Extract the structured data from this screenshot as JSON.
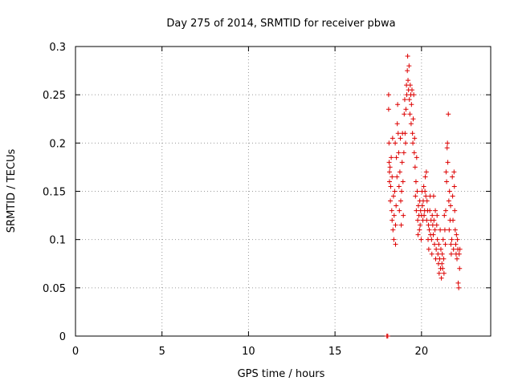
{
  "chart_data": {
    "type": "scatter",
    "title": "Day 275 of 2014, SRMTID for receiver pbwa",
    "xlabel": "GPS time / hours",
    "ylabel": "SRMTID / TECUs",
    "xlim": [
      0,
      24
    ],
    "ylim": [
      0,
      0.3
    ],
    "xticks": [
      0,
      5,
      10,
      15,
      20
    ],
    "yticks": [
      0,
      0.05,
      0.1,
      0.15,
      0.2,
      0.25,
      0.3
    ],
    "xtick_labels": [
      "0",
      "5",
      "10",
      "15",
      "20"
    ],
    "ytick_labels": [
      "0",
      "0.05",
      "0.1",
      "0.15",
      "0.2",
      "0.25",
      "0.3"
    ],
    "grid": true,
    "marker": "+",
    "color": "#dd0000",
    "series": [
      {
        "name": "pbwa",
        "points": [
          [
            18.0,
            0.0
          ],
          [
            18.05,
            0.0
          ],
          [
            18.1,
            0.25
          ],
          [
            18.1,
            0.235
          ],
          [
            18.12,
            0.2
          ],
          [
            18.13,
            0.18
          ],
          [
            18.15,
            0.17
          ],
          [
            18.15,
            0.16
          ],
          [
            18.18,
            0.175
          ],
          [
            18.2,
            0.14
          ],
          [
            18.22,
            0.155
          ],
          [
            18.25,
            0.185
          ],
          [
            18.28,
            0.13
          ],
          [
            18.3,
            0.12
          ],
          [
            18.3,
            0.165
          ],
          [
            18.33,
            0.205
          ],
          [
            18.35,
            0.11
          ],
          [
            18.38,
            0.145
          ],
          [
            18.4,
            0.1
          ],
          [
            18.42,
            0.125
          ],
          [
            18.45,
            0.15
          ],
          [
            18.48,
            0.2
          ],
          [
            18.5,
            0.115
          ],
          [
            18.5,
            0.095
          ],
          [
            18.53,
            0.135
          ],
          [
            18.55,
            0.185
          ],
          [
            18.58,
            0.165
          ],
          [
            18.6,
            0.22
          ],
          [
            18.62,
            0.24
          ],
          [
            18.65,
            0.21
          ],
          [
            18.68,
            0.19
          ],
          [
            18.7,
            0.155
          ],
          [
            18.72,
            0.13
          ],
          [
            18.75,
            0.17
          ],
          [
            18.78,
            0.205
          ],
          [
            18.8,
            0.14
          ],
          [
            18.83,
            0.115
          ],
          [
            18.85,
            0.15
          ],
          [
            18.88,
            0.18
          ],
          [
            18.9,
            0.21
          ],
          [
            18.93,
            0.16
          ],
          [
            18.95,
            0.125
          ],
          [
            18.98,
            0.19
          ],
          [
            19.0,
            0.23
          ],
          [
            19.03,
            0.245
          ],
          [
            19.05,
            0.21
          ],
          [
            19.08,
            0.2
          ],
          [
            19.1,
            0.235
          ],
          [
            19.13,
            0.26
          ],
          [
            19.15,
            0.25
          ],
          [
            19.18,
            0.275
          ],
          [
            19.2,
            0.29
          ],
          [
            19.22,
            0.265
          ],
          [
            19.25,
            0.255
          ],
          [
            19.28,
            0.28
          ],
          [
            19.3,
            0.245
          ],
          [
            19.33,
            0.23
          ],
          [
            19.35,
            0.26
          ],
          [
            19.38,
            0.25
          ],
          [
            19.4,
            0.22
          ],
          [
            19.42,
            0.24
          ],
          [
            19.45,
            0.255
          ],
          [
            19.48,
            0.21
          ],
          [
            19.5,
            0.2
          ],
          [
            19.52,
            0.225
          ],
          [
            19.55,
            0.25
          ],
          [
            19.58,
            0.19
          ],
          [
            19.6,
            0.205
          ],
          [
            19.63,
            0.175
          ],
          [
            19.65,
            0.145
          ],
          [
            19.68,
            0.16
          ],
          [
            19.7,
            0.13
          ],
          [
            19.72,
            0.185
          ],
          [
            19.75,
            0.15
          ],
          [
            19.78,
            0.12
          ],
          [
            19.8,
            0.105
          ],
          [
            19.82,
            0.135
          ],
          [
            19.85,
            0.125
          ],
          [
            19.88,
            0.11
          ],
          [
            19.9,
            0.14
          ],
          [
            19.92,
            0.115
          ],
          [
            19.95,
            0.13
          ],
          [
            19.98,
            0.1
          ],
          [
            20.0,
            0.125
          ],
          [
            20.03,
            0.15
          ],
          [
            20.05,
            0.135
          ],
          [
            20.08,
            0.12
          ],
          [
            20.1,
            0.14
          ],
          [
            20.13,
            0.155
          ],
          [
            20.15,
            0.125
          ],
          [
            20.18,
            0.13
          ],
          [
            20.2,
            0.15
          ],
          [
            20.22,
            0.165
          ],
          [
            20.25,
            0.145
          ],
          [
            20.28,
            0.17
          ],
          [
            20.3,
            0.12
          ],
          [
            20.32,
            0.14
          ],
          [
            20.35,
            0.13
          ],
          [
            20.38,
            0.1
          ],
          [
            20.4,
            0.115
          ],
          [
            20.42,
            0.09
          ],
          [
            20.45,
            0.11
          ],
          [
            20.48,
            0.13
          ],
          [
            20.5,
            0.145
          ],
          [
            20.52,
            0.105
          ],
          [
            20.55,
            0.12
          ],
          [
            20.58,
            0.1
          ],
          [
            20.6,
            0.085
          ],
          [
            20.62,
            0.125
          ],
          [
            20.65,
            0.115
          ],
          [
            20.68,
            0.105
          ],
          [
            20.7,
            0.145
          ],
          [
            20.72,
            0.12
          ],
          [
            20.75,
            0.095
          ],
          [
            20.78,
            0.11
          ],
          [
            20.8,
            0.13
          ],
          [
            20.82,
            0.08
          ],
          [
            20.85,
            0.09
          ],
          [
            20.88,
            0.115
          ],
          [
            20.9,
            0.125
          ],
          [
            20.92,
            0.1
          ],
          [
            20.95,
            0.085
          ],
          [
            20.98,
            0.075
          ],
          [
            21.0,
            0.095
          ],
          [
            21.02,
            0.065
          ],
          [
            21.05,
            0.08
          ],
          [
            21.08,
            0.11
          ],
          [
            21.1,
            0.07
          ],
          [
            21.12,
            0.09
          ],
          [
            21.15,
            0.06
          ],
          [
            21.18,
            0.075
          ],
          [
            21.2,
            0.085
          ],
          [
            21.22,
            0.07
          ],
          [
            21.25,
            0.1
          ],
          [
            21.28,
            0.08
          ],
          [
            21.3,
            0.065
          ],
          [
            21.32,
            0.125
          ],
          [
            21.35,
            0.11
          ],
          [
            21.38,
            0.095
          ],
          [
            21.4,
            0.13
          ],
          [
            21.42,
            0.17
          ],
          [
            21.45,
            0.16
          ],
          [
            21.48,
            0.195
          ],
          [
            21.5,
            0.2
          ],
          [
            21.52,
            0.18
          ],
          [
            21.55,
            0.23
          ],
          [
            21.58,
            0.14
          ],
          [
            21.6,
            0.11
          ],
          [
            21.62,
            0.15
          ],
          [
            21.65,
            0.12
          ],
          [
            21.68,
            0.135
          ],
          [
            21.7,
            0.095
          ],
          [
            21.72,
            0.085
          ],
          [
            21.75,
            0.1
          ],
          [
            21.78,
            0.165
          ],
          [
            21.8,
            0.145
          ],
          [
            21.82,
            0.12
          ],
          [
            21.85,
            0.09
          ],
          [
            21.88,
            0.17
          ],
          [
            21.9,
            0.155
          ],
          [
            21.92,
            0.13
          ],
          [
            21.95,
            0.11
          ],
          [
            21.98,
            0.095
          ],
          [
            22.0,
            0.085
          ],
          [
            22.02,
            0.105
          ],
          [
            22.05,
            0.08
          ],
          [
            22.08,
            0.1
          ],
          [
            22.1,
            0.09
          ],
          [
            22.12,
            0.055
          ],
          [
            22.15,
            0.05
          ],
          [
            22.18,
            0.085
          ],
          [
            22.2,
            0.07
          ],
          [
            22.22,
            0.09
          ]
        ]
      }
    ]
  }
}
